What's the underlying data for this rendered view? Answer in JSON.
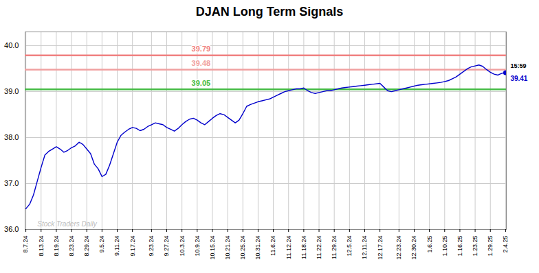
{
  "chart_data": {
    "type": "line",
    "title": "DJAN Long Term Signals",
    "categories": [
      "8.7.24",
      null,
      null,
      null,
      "8.13.24",
      null,
      null,
      null,
      "8.19.24",
      null,
      null,
      null,
      "8.23.24",
      null,
      null,
      null,
      "8.29.24",
      null,
      null,
      null,
      "9.5.24",
      null,
      null,
      null,
      "9.11.24",
      null,
      null,
      null,
      "9.17.24",
      null,
      null,
      null,
      null,
      "9.23.24",
      null,
      null,
      null,
      "9.27.24",
      null,
      null,
      null,
      "10.3.24",
      null,
      null,
      null,
      "10.9.24",
      null,
      null,
      null,
      "10.15.24",
      null,
      null,
      null,
      "10.21.24",
      null,
      null,
      null,
      "10.25.24",
      null,
      null,
      null,
      "10.31.24",
      null,
      null,
      null,
      "11.6.24",
      null,
      null,
      null,
      "11.12.24",
      null,
      null,
      null,
      "11.18.24",
      null,
      null,
      null,
      "11.22.24",
      null,
      null,
      null,
      "11.29.24",
      null,
      null,
      null,
      "12.5.24",
      null,
      null,
      null,
      "12.11.24",
      null,
      null,
      null,
      "12.17.24",
      null,
      null,
      null,
      null,
      "12.23.24",
      null,
      null,
      null,
      "12.30.24",
      null,
      null,
      null,
      "1.6.25",
      null,
      null,
      null,
      "1.10.25",
      null,
      null,
      null,
      "1.16.25",
      null,
      null,
      null,
      "1.23.25",
      null,
      null,
      null,
      "1.29.25",
      null,
      null,
      null,
      "2.4.25"
    ],
    "values": [
      36.45,
      36.55,
      36.75,
      37.05,
      37.35,
      37.62,
      37.7,
      37.75,
      37.8,
      37.75,
      37.68,
      37.72,
      37.78,
      37.82,
      37.9,
      37.85,
      37.75,
      37.65,
      37.42,
      37.32,
      37.15,
      37.2,
      37.4,
      37.65,
      37.9,
      38.05,
      38.12,
      38.18,
      38.22,
      38.2,
      38.15,
      38.18,
      38.24,
      38.28,
      38.32,
      38.3,
      38.28,
      38.22,
      38.18,
      38.14,
      38.2,
      38.28,
      38.35,
      38.4,
      38.42,
      38.38,
      38.32,
      38.28,
      38.35,
      38.42,
      38.48,
      38.52,
      38.5,
      38.44,
      38.38,
      38.32,
      38.38,
      38.52,
      38.68,
      38.72,
      38.75,
      38.78,
      38.8,
      38.82,
      38.84,
      38.88,
      38.92,
      38.96,
      39.0,
      39.02,
      39.04,
      39.06,
      39.06,
      39.08,
      39.02,
      38.98,
      38.96,
      38.98,
      39.0,
      39.02,
      39.02,
      39.04,
      39.06,
      39.08,
      39.09,
      39.1,
      39.11,
      39.12,
      39.13,
      39.14,
      39.15,
      39.16,
      39.17,
      39.18,
      39.1,
      39.02,
      39.0,
      39.02,
      39.04,
      39.06,
      39.08,
      39.1,
      39.12,
      39.14,
      39.15,
      39.16,
      39.17,
      39.18,
      39.19,
      39.2,
      39.22,
      39.24,
      39.28,
      39.32,
      39.38,
      39.44,
      39.5,
      39.54,
      39.56,
      39.58,
      39.55,
      39.48,
      39.42,
      39.38,
      39.36,
      39.4,
      39.41
    ],
    "color": "#0000cc",
    "ylim": [
      36,
      40.3
    ],
    "yticks": [
      36,
      37,
      38,
      39,
      40
    ],
    "grid": true,
    "hlines": [
      {
        "value": 39.79,
        "color": "#f08080"
      },
      {
        "value": 39.48,
        "color": "#f0a0a0"
      },
      {
        "value": 39.05,
        "color": "#44bb44"
      }
    ],
    "last_label": "15:59",
    "watermark": {
      "text": "Stock Traders Daily",
      "color": "#bbbbbb"
    }
  }
}
